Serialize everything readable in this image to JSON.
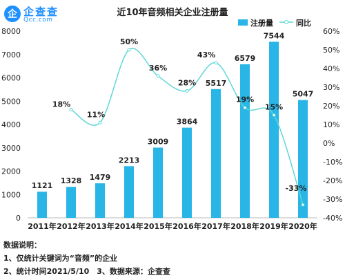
{
  "logo": {
    "icon_char": "企",
    "name": "企查查",
    "domain": "Qcc.com"
  },
  "chart_data": {
    "type": "bar",
    "title": "近10年音频相关企业注册量",
    "categories": [
      "2011年",
      "2012年",
      "2013年",
      "2014年",
      "2015年",
      "2016年",
      "2017年",
      "2018年",
      "2019年",
      "2020年"
    ],
    "series": [
      {
        "name": "注册量",
        "type": "bar",
        "axis": "left",
        "color": "#29b6e6",
        "values": [
          1121,
          1328,
          1479,
          2213,
          3009,
          3864,
          5517,
          6579,
          7544,
          5047
        ]
      },
      {
        "name": "同比",
        "type": "line",
        "axis": "right",
        "color": "#5fd6d6",
        "values": [
          null,
          18,
          11,
          50,
          36,
          28,
          43,
          19,
          15,
          -33
        ],
        "labels": [
          "",
          "18%",
          "11%",
          "50%",
          "36%",
          "28%",
          "43%",
          "19%",
          "15%",
          "-33%"
        ]
      }
    ],
    "ylim": [
      0,
      8000
    ],
    "yticks": [
      "0",
      "1000",
      "2000",
      "3000",
      "4000",
      "5000",
      "6000",
      "7000",
      "8000"
    ],
    "y2lim": [
      -40,
      60
    ],
    "y2ticks": [
      "-40%",
      "-30%",
      "-20%",
      "-10%",
      "0%",
      "10%",
      "20%",
      "30%",
      "40%",
      "50%",
      "60%"
    ],
    "legend": "top-right"
  },
  "notes": {
    "heading": "数据说明：",
    "line1": "1、仅统计关键词为“音频”的企业",
    "line2": "2、统计时间2021/5/10　3、数据来源：企查查"
  }
}
